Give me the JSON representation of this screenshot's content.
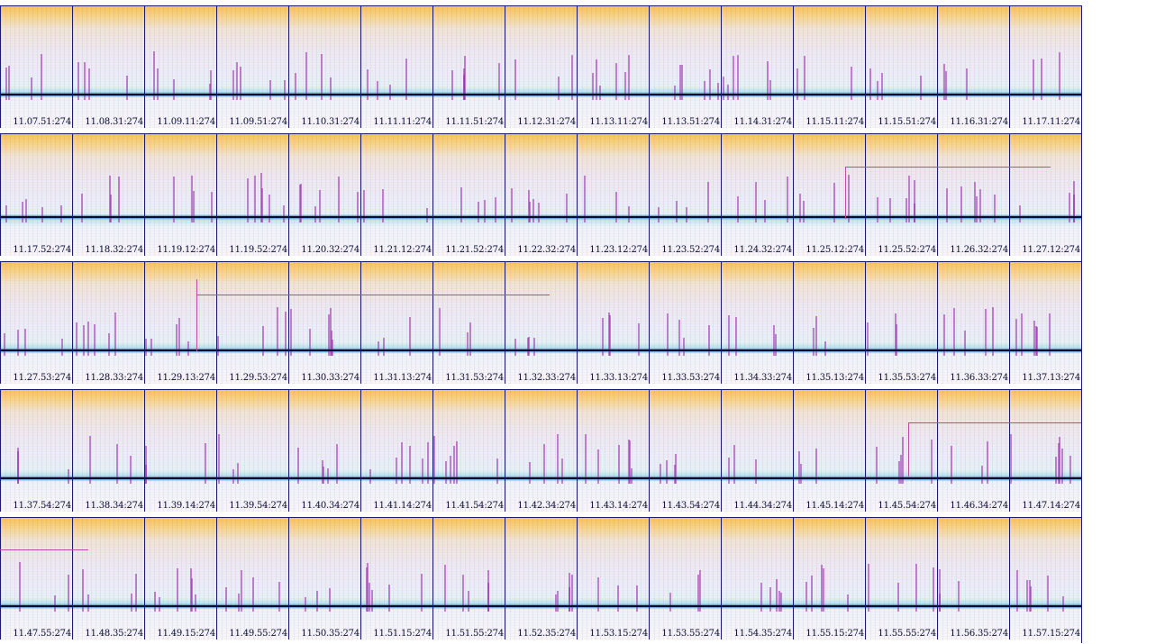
{
  "rows": [
    {
      "labels": [
        "11.07.51:274",
        "11.08.31:274",
        "11.09.11:274",
        "11.09.51:274",
        "11.10.31:274",
        "11.11.11:274",
        "11.11.51:274",
        "11.12.31:274",
        "11.13.11:274",
        "11.13.51:274",
        "11.14.31:274",
        "11.15.11:274",
        "11.15.51:274",
        "11.16.31:274",
        "11.17.11:274"
      ]
    },
    {
      "labels": [
        "11.17.52:274",
        "11.18.32:274",
        "11.19.12:274",
        "11.19.52:274",
        "11.20.32:274",
        "11.21.12:274",
        "11.21.52:274",
        "11.22.32:274",
        "11.23.12:274",
        "11.23.52:274",
        "11.24.32:274",
        "11.25.12:274",
        "11.25.52:274",
        "11.26.32:274",
        "11.27.12:274"
      ]
    },
    {
      "labels": [
        "11.27.53:274",
        "11.28.33:274",
        "11.29.13:274",
        "11.29.53:274",
        "11.30.33:274",
        "11.31.13:274",
        "11.31.53:274",
        "11.32.33:274",
        "11.33.13:274",
        "11.33.53:274",
        "11.34.33:274",
        "11.35.13:274",
        "11.35.53:274",
        "11.36.33:274",
        "11.37.13:274"
      ]
    },
    {
      "labels": [
        "11.37.54:274",
        "11.38.34:274",
        "11.39.14:274",
        "11.39.54:274",
        "11.40.34:274",
        "11.41.14:274",
        "11.41.54:274",
        "11.42.34:274",
        "11.43.14:274",
        "11.43.54:274",
        "11.44.34:274",
        "11.45.14:274",
        "11.45.54:274",
        "11.46.34:274",
        "11.47.14:274"
      ]
    },
    {
      "labels": [
        "11.47.55:274",
        "11.48.35:274",
        "11.49.15:274",
        "11.49.55:274",
        "11.50.35:274",
        "11.51.15:274",
        "11.51.55:274",
        "11.52.35:274",
        "11.53.15:274",
        "11.53.55:274",
        "11.54.35:274",
        "11.55.15:274",
        "11.55.55:274",
        "11.56.35:274",
        "11.57.15:274"
      ]
    }
  ],
  "colors": {
    "baseline": "#0b0b2a",
    "frame": "#1a1a6e",
    "marker": "#c04aa0",
    "top_tint": "#f7c45a",
    "band_tint": "#1e78c8"
  }
}
